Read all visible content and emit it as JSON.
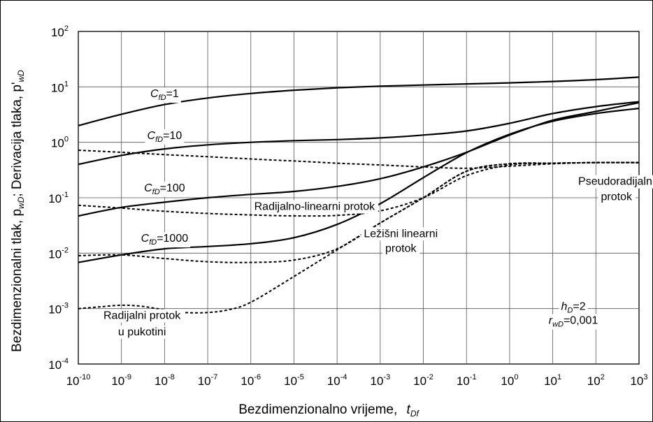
{
  "chart_data": {
    "type": "line",
    "xscale": "log",
    "yscale": "log",
    "xlim": [
      1e-10,
      1000
    ],
    "ylim": [
      0.0001,
      100
    ],
    "grid": true,
    "xlabel": "Bezdimenzionalno vrijeme,",
    "xlabel_symbol": "t",
    "xlabel_sub": "Df",
    "ylabel": "Bezdimenzionalni tlak, p",
    "ylabel_sub1": "wD",
    "ylabel_mid": "; Derivacija tlaka, p'",
    "ylabel_sub2": "wD",
    "xticks": [
      {
        "base": "10",
        "exp": "-10"
      },
      {
        "base": "10",
        "exp": "-9"
      },
      {
        "base": "10",
        "exp": "-8"
      },
      {
        "base": "10",
        "exp": "-7"
      },
      {
        "base": "10",
        "exp": "-6"
      },
      {
        "base": "10",
        "exp": "-5"
      },
      {
        "base": "10",
        "exp": "-4"
      },
      {
        "base": "10",
        "exp": "-3"
      },
      {
        "base": "10",
        "exp": "-2"
      },
      {
        "base": "10",
        "exp": "-1"
      },
      {
        "base": "10",
        "exp": "0"
      },
      {
        "base": "10",
        "exp": "1"
      },
      {
        "base": "10",
        "exp": "2"
      },
      {
        "base": "10",
        "exp": "3"
      }
    ],
    "yticks": [
      {
        "base": "10",
        "exp": "-4"
      },
      {
        "base": "10",
        "exp": "-3"
      },
      {
        "base": "10",
        "exp": "-2"
      },
      {
        "base": "10",
        "exp": "-1"
      },
      {
        "base": "10",
        "exp": "0"
      },
      {
        "base": "10",
        "exp": "1"
      },
      {
        "base": "10",
        "exp": "2"
      }
    ],
    "series": [
      {
        "label": "C_fD=1 pressure",
        "style": "solid",
        "points": [
          [
            1e-10,
            2.0
          ],
          [
            1e-09,
            3.2
          ],
          [
            1e-08,
            4.8
          ],
          [
            1e-07,
            6.3
          ],
          [
            1e-06,
            7.6
          ],
          [
            1e-05,
            8.7
          ],
          [
            0.0001,
            9.6
          ],
          [
            0.001,
            10.3
          ],
          [
            0.01,
            10.8
          ],
          [
            0.1,
            11.3
          ],
          [
            1,
            11.8
          ],
          [
            10,
            12.5
          ],
          [
            100,
            13.5
          ],
          [
            1000,
            15.0
          ]
        ]
      },
      {
        "label": "C_fD=10 pressure",
        "style": "solid",
        "points": [
          [
            1e-10,
            0.4
          ],
          [
            1e-09,
            0.58
          ],
          [
            1e-08,
            0.76
          ],
          [
            1e-07,
            0.9
          ],
          [
            1e-06,
            1.0
          ],
          [
            1e-05,
            1.07
          ],
          [
            0.0001,
            1.12
          ],
          [
            0.001,
            1.2
          ],
          [
            0.01,
            1.35
          ],
          [
            0.1,
            1.6
          ],
          [
            1,
            2.2
          ],
          [
            10,
            3.3
          ],
          [
            100,
            4.4
          ],
          [
            1000,
            5.4
          ]
        ]
      },
      {
        "label": "C_fD=100 pressure",
        "style": "solid",
        "points": [
          [
            1e-10,
            0.047
          ],
          [
            1e-09,
            0.067
          ],
          [
            1e-08,
            0.083
          ],
          [
            1e-07,
            0.1
          ],
          [
            1e-06,
            0.115
          ],
          [
            1e-05,
            0.13
          ],
          [
            0.0001,
            0.16
          ],
          [
            0.001,
            0.22
          ],
          [
            0.01,
            0.36
          ],
          [
            0.1,
            0.66
          ],
          [
            1,
            1.35
          ],
          [
            10,
            2.5
          ],
          [
            100,
            3.6
          ],
          [
            1000,
            5.2
          ]
        ]
      },
      {
        "label": "C_fD=1000 pressure",
        "style": "solid",
        "points": [
          [
            1e-10,
            0.0068
          ],
          [
            1e-09,
            0.0093
          ],
          [
            1e-08,
            0.012
          ],
          [
            1e-07,
            0.0132
          ],
          [
            1e-06,
            0.0148
          ],
          [
            1e-05,
            0.019
          ],
          [
            0.0001,
            0.033
          ],
          [
            0.001,
            0.078
          ],
          [
            0.01,
            0.23
          ],
          [
            0.1,
            0.65
          ],
          [
            1,
            1.4
          ],
          [
            10,
            2.4
          ],
          [
            100,
            3.3
          ],
          [
            1000,
            4.1
          ]
        ]
      },
      {
        "label": "C_fD=10 derivative",
        "style": "dashed",
        "points": [
          [
            1e-10,
            0.72
          ],
          [
            1e-09,
            0.66
          ],
          [
            1e-08,
            0.6
          ],
          [
            1e-07,
            0.55
          ],
          [
            1e-06,
            0.5
          ],
          [
            1e-05,
            0.46
          ],
          [
            0.0001,
            0.42
          ],
          [
            0.001,
            0.39
          ],
          [
            0.01,
            0.36
          ],
          [
            0.1,
            0.34
          ],
          [
            1,
            0.37
          ],
          [
            10,
            0.41
          ],
          [
            100,
            0.43
          ],
          [
            1000,
            0.43
          ]
        ]
      },
      {
        "label": "C_fD=100 derivative",
        "style": "dashed",
        "points": [
          [
            1e-10,
            0.073
          ],
          [
            1e-09,
            0.065
          ],
          [
            1e-08,
            0.057
          ],
          [
            1e-07,
            0.052
          ],
          [
            1e-06,
            0.049
          ],
          [
            1e-05,
            0.047
          ],
          [
            0.0001,
            0.048
          ],
          [
            0.001,
            0.058
          ],
          [
            0.01,
            0.1
          ],
          [
            0.1,
            0.25
          ],
          [
            1,
            0.39
          ],
          [
            10,
            0.42
          ],
          [
            100,
            0.43
          ],
          [
            1000,
            0.43
          ]
        ]
      },
      {
        "label": "C_fD=1000 derivative",
        "style": "dashed",
        "points": [
          [
            1e-10,
            0.009
          ],
          [
            1e-09,
            0.0093
          ],
          [
            1e-08,
            0.008
          ],
          [
            1e-07,
            0.007
          ],
          [
            1e-06,
            0.0068
          ],
          [
            1e-05,
            0.0075
          ],
          [
            0.0001,
            0.012
          ],
          [
            0.001,
            0.035
          ],
          [
            0.01,
            0.1
          ],
          [
            0.1,
            0.3
          ],
          [
            1,
            0.41
          ],
          [
            10,
            0.42
          ],
          [
            100,
            0.43
          ],
          [
            1000,
            0.43
          ]
        ]
      },
      {
        "label": "fracture radial derivative",
        "style": "dashed",
        "points": [
          [
            1e-10,
            0.001
          ],
          [
            3e-10,
            0.00107
          ],
          [
            1e-09,
            0.00115
          ],
          [
            3e-09,
            0.0011
          ],
          [
            1e-08,
            0.00095
          ],
          [
            3e-08,
            0.00085
          ],
          [
            1e-07,
            0.00085
          ],
          [
            3e-07,
            0.00095
          ],
          [
            1e-06,
            0.0013
          ],
          [
            1e-05,
            0.0038
          ],
          [
            0.0001,
            0.0115
          ],
          [
            0.001,
            0.035
          ],
          [
            0.01,
            0.1
          ],
          [
            0.1,
            0.3
          ],
          [
            1,
            0.41
          ],
          [
            10,
            0.42
          ],
          [
            100,
            0.43
          ],
          [
            1000,
            0.43
          ]
        ]
      }
    ],
    "annotations": [
      {
        "text": "=1",
        "symbol": "C",
        "sub": "fD",
        "x": 1e-08,
        "y": 6.5
      },
      {
        "text": "=10",
        "symbol": "C",
        "sub": "fD",
        "x": 1e-08,
        "y": 1.15
      },
      {
        "text": "=100",
        "symbol": "C",
        "sub": "fD",
        "x": 1e-08,
        "y": 0.13
      },
      {
        "text": "=1000",
        "symbol": "C",
        "sub": "fD",
        "x": 1e-08,
        "y": 0.016
      },
      {
        "text": "Radijalno-linearni protok",
        "x": 3e-05,
        "y": 0.06
      },
      {
        "text": "Ležišni linearni",
        "x": 0.003,
        "y": 0.0195
      },
      {
        "text": "protok",
        "x": 0.003,
        "y": 0.0105
      },
      {
        "text": "Pseudoradijalni",
        "x": 300,
        "y": 0.17
      },
      {
        "text": "protok",
        "x": 300,
        "y": 0.09
      },
      {
        "text": "Radijalni protok",
        "x": 3e-09,
        "y": 0.00065
      },
      {
        "text": "u pukotini",
        "x": 3e-09,
        "y": 0.00033
      },
      {
        "text": "=2",
        "symbol": "h",
        "sub": "D",
        "x": 30,
        "y": 0.00095
      },
      {
        "text": "=0,001",
        "symbol": "r",
        "sub": "wD",
        "x": 30,
        "y": 0.00053
      }
    ]
  }
}
